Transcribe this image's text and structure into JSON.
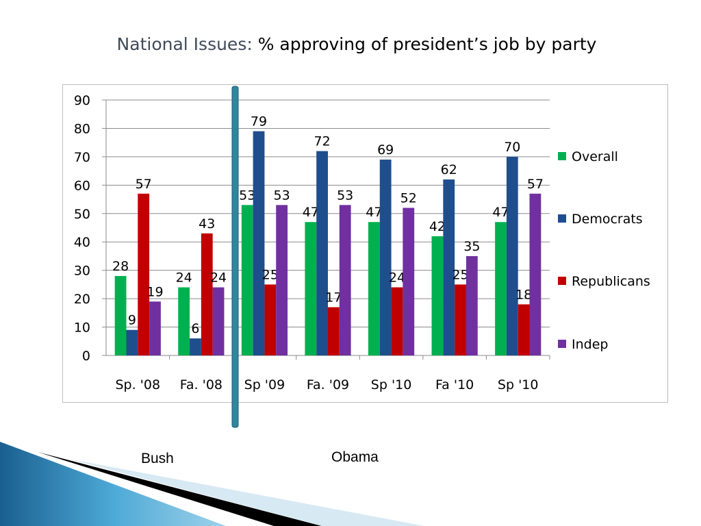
{
  "title": {
    "prefix": "National Issues:",
    "main": "% approving of president’s job by party"
  },
  "eras": [
    {
      "label": "Bush"
    },
    {
      "label": "Obama"
    }
  ],
  "colors": {
    "overall": "#00b050",
    "democrats": "#1f4e8c",
    "republicans": "#c00000",
    "indep": "#7030a0",
    "divider": "#31859c",
    "grid": "#8a8a8a"
  },
  "chart_data": {
    "type": "bar",
    "title": "% approving of president’s job by party",
    "categories": [
      "Sp. '08",
      "Fa. '08",
      "Sp '09",
      "Fa. '09",
      "Sp '10",
      "Fa '10",
      "Sp '10"
    ],
    "series": [
      {
        "name": "Overall",
        "values": [
          28,
          24,
          53,
          47,
          47,
          42,
          47
        ]
      },
      {
        "name": "Democrats",
        "values": [
          9,
          6,
          79,
          72,
          69,
          62,
          70
        ]
      },
      {
        "name": "Republicans",
        "values": [
          57,
          43,
          25,
          17,
          24,
          25,
          18
        ]
      },
      {
        "name": "Indep",
        "values": [
          19,
          24,
          53,
          53,
          52,
          35,
          57
        ]
      }
    ],
    "yticks": [
      "0",
      "10",
      "20",
      "30",
      "40",
      "50",
      "60",
      "70",
      "80",
      "90"
    ],
    "ylim": [
      0,
      90
    ],
    "grid": true,
    "legend_position": "right"
  }
}
